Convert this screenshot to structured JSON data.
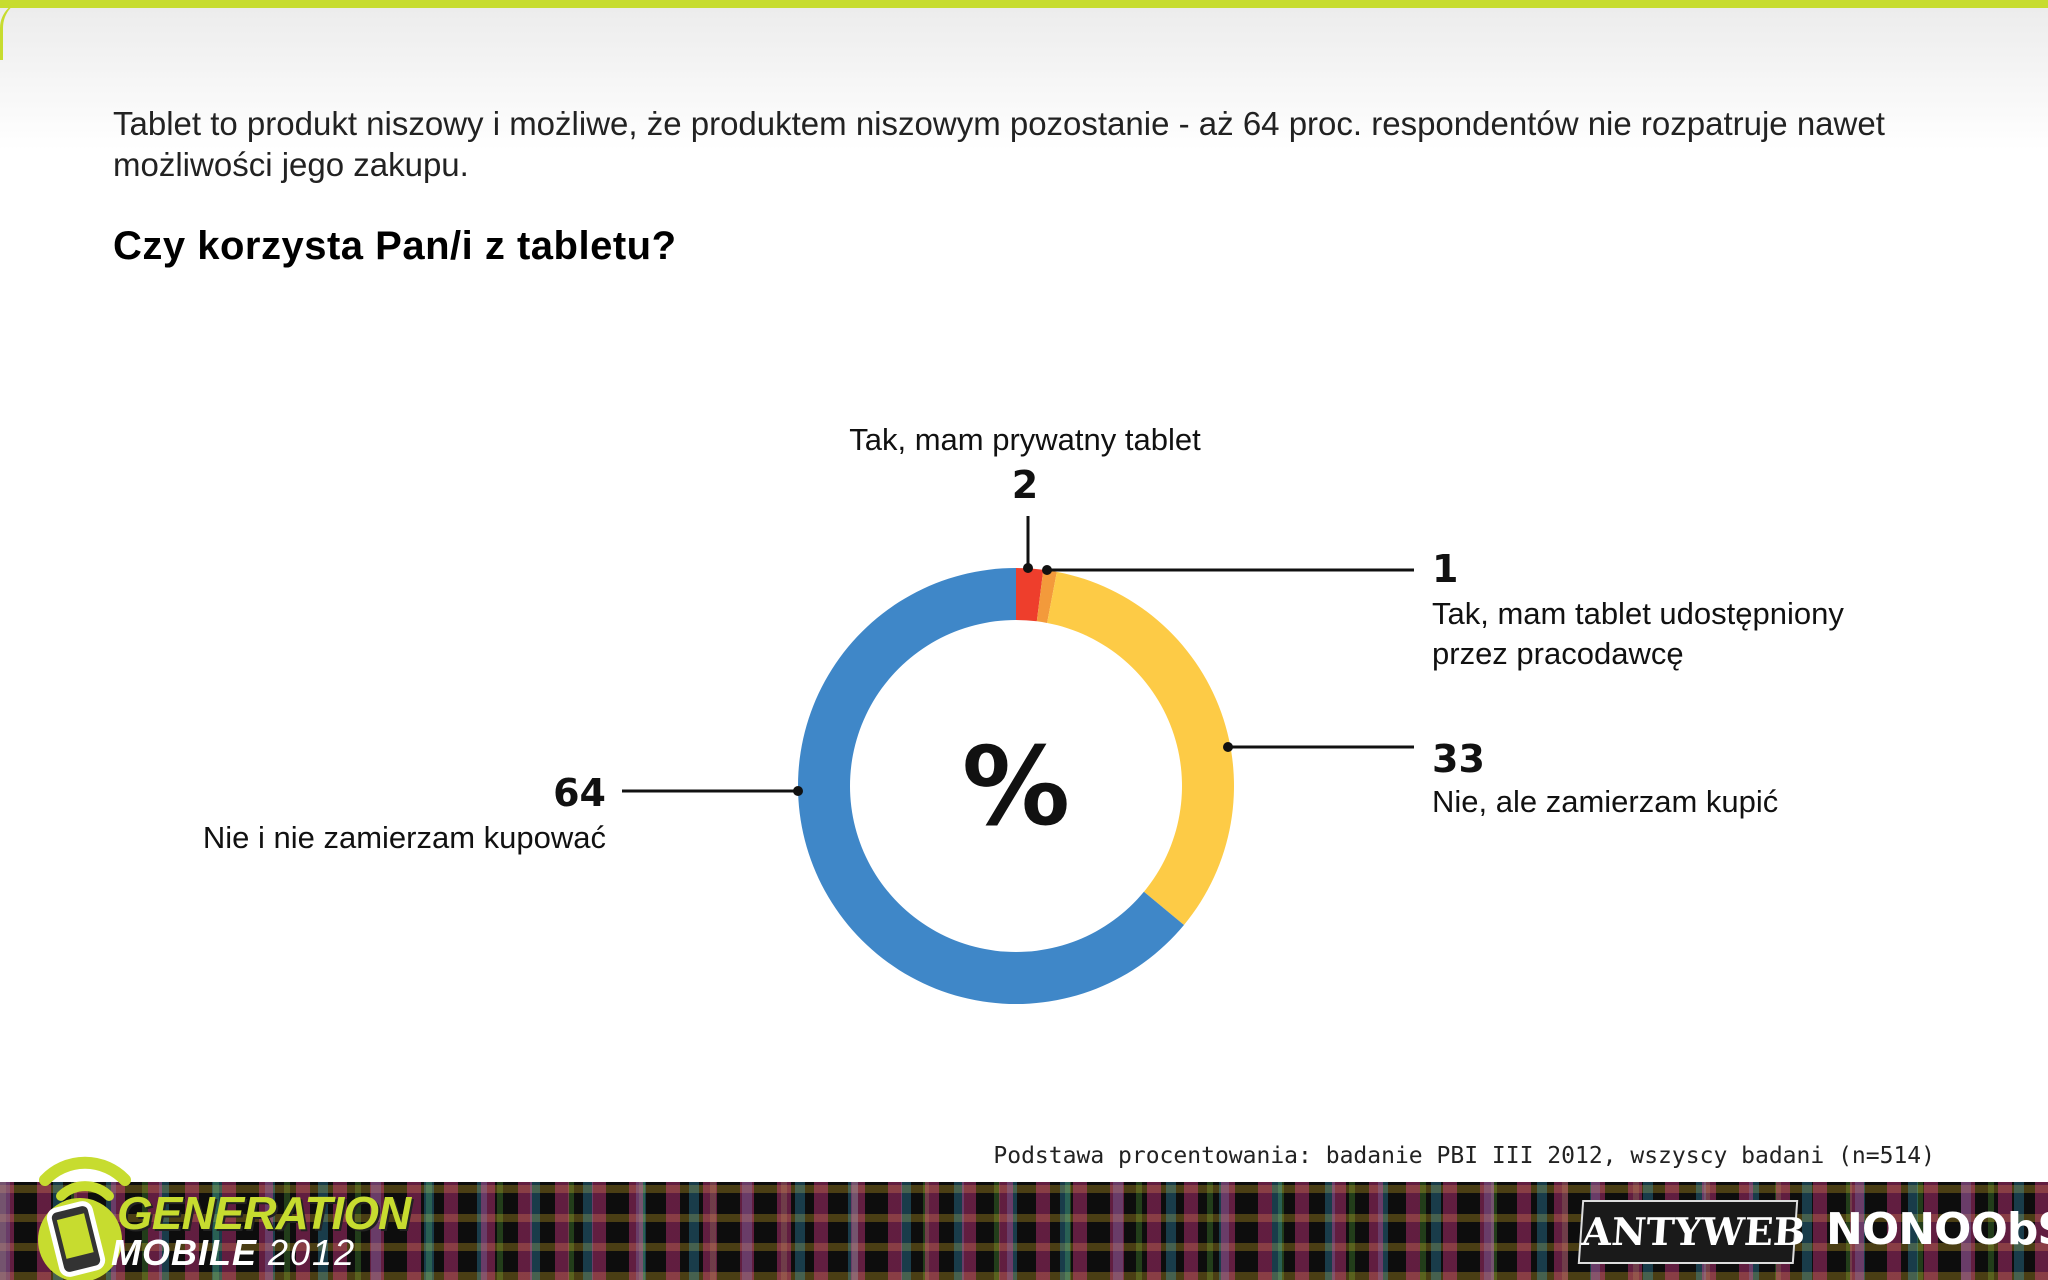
{
  "intro_text": "Tablet to produkt niszowy i możliwe, że produktem niszowym pozostanie - aż 64 proc. respondentów nie rozpatruje nawet możliwości jego zakupu.",
  "question": "Czy korzysta Pan/i z tabletu?",
  "chart_data": {
    "type": "pie",
    "variant": "donut",
    "center_label": "%",
    "categories": [
      "Tak, mam prywatny tablet",
      "Tak, mam tablet udostępniony przez pracodawcę",
      "Nie, ale zamierzam kupić",
      "Nie i nie zamierzam kupować"
    ],
    "values": [
      2,
      1,
      33,
      64
    ],
    "colors": [
      "#ee3e2c",
      "#f39a3b",
      "#fdcb46",
      "#3f87c8"
    ],
    "labels": [
      {
        "value": "2",
        "text": [
          "Tak, mam prywatny tablet"
        ],
        "side": "top"
      },
      {
        "value": "1",
        "text": [
          "Tak, mam tablet udostępniony",
          "przez pracodawcę"
        ],
        "side": "right"
      },
      {
        "value": "33",
        "text": [
          "Nie, ale zamierzam kupić"
        ],
        "side": "right"
      },
      {
        "value": "64",
        "text": [
          "Nie i nie zamierzam kupować"
        ],
        "side": "left"
      }
    ]
  },
  "footnote": "Podstawa procentowania: badanie PBI III 2012, wszyscy badani (n=514)",
  "footer": {
    "logo_line1": "GENERATION",
    "logo_line2": "MOBILE",
    "logo_year": "2012",
    "partner1": "ANTYWEB",
    "partner2": "NONOObS",
    "accent_color": "#c7dc2f"
  }
}
